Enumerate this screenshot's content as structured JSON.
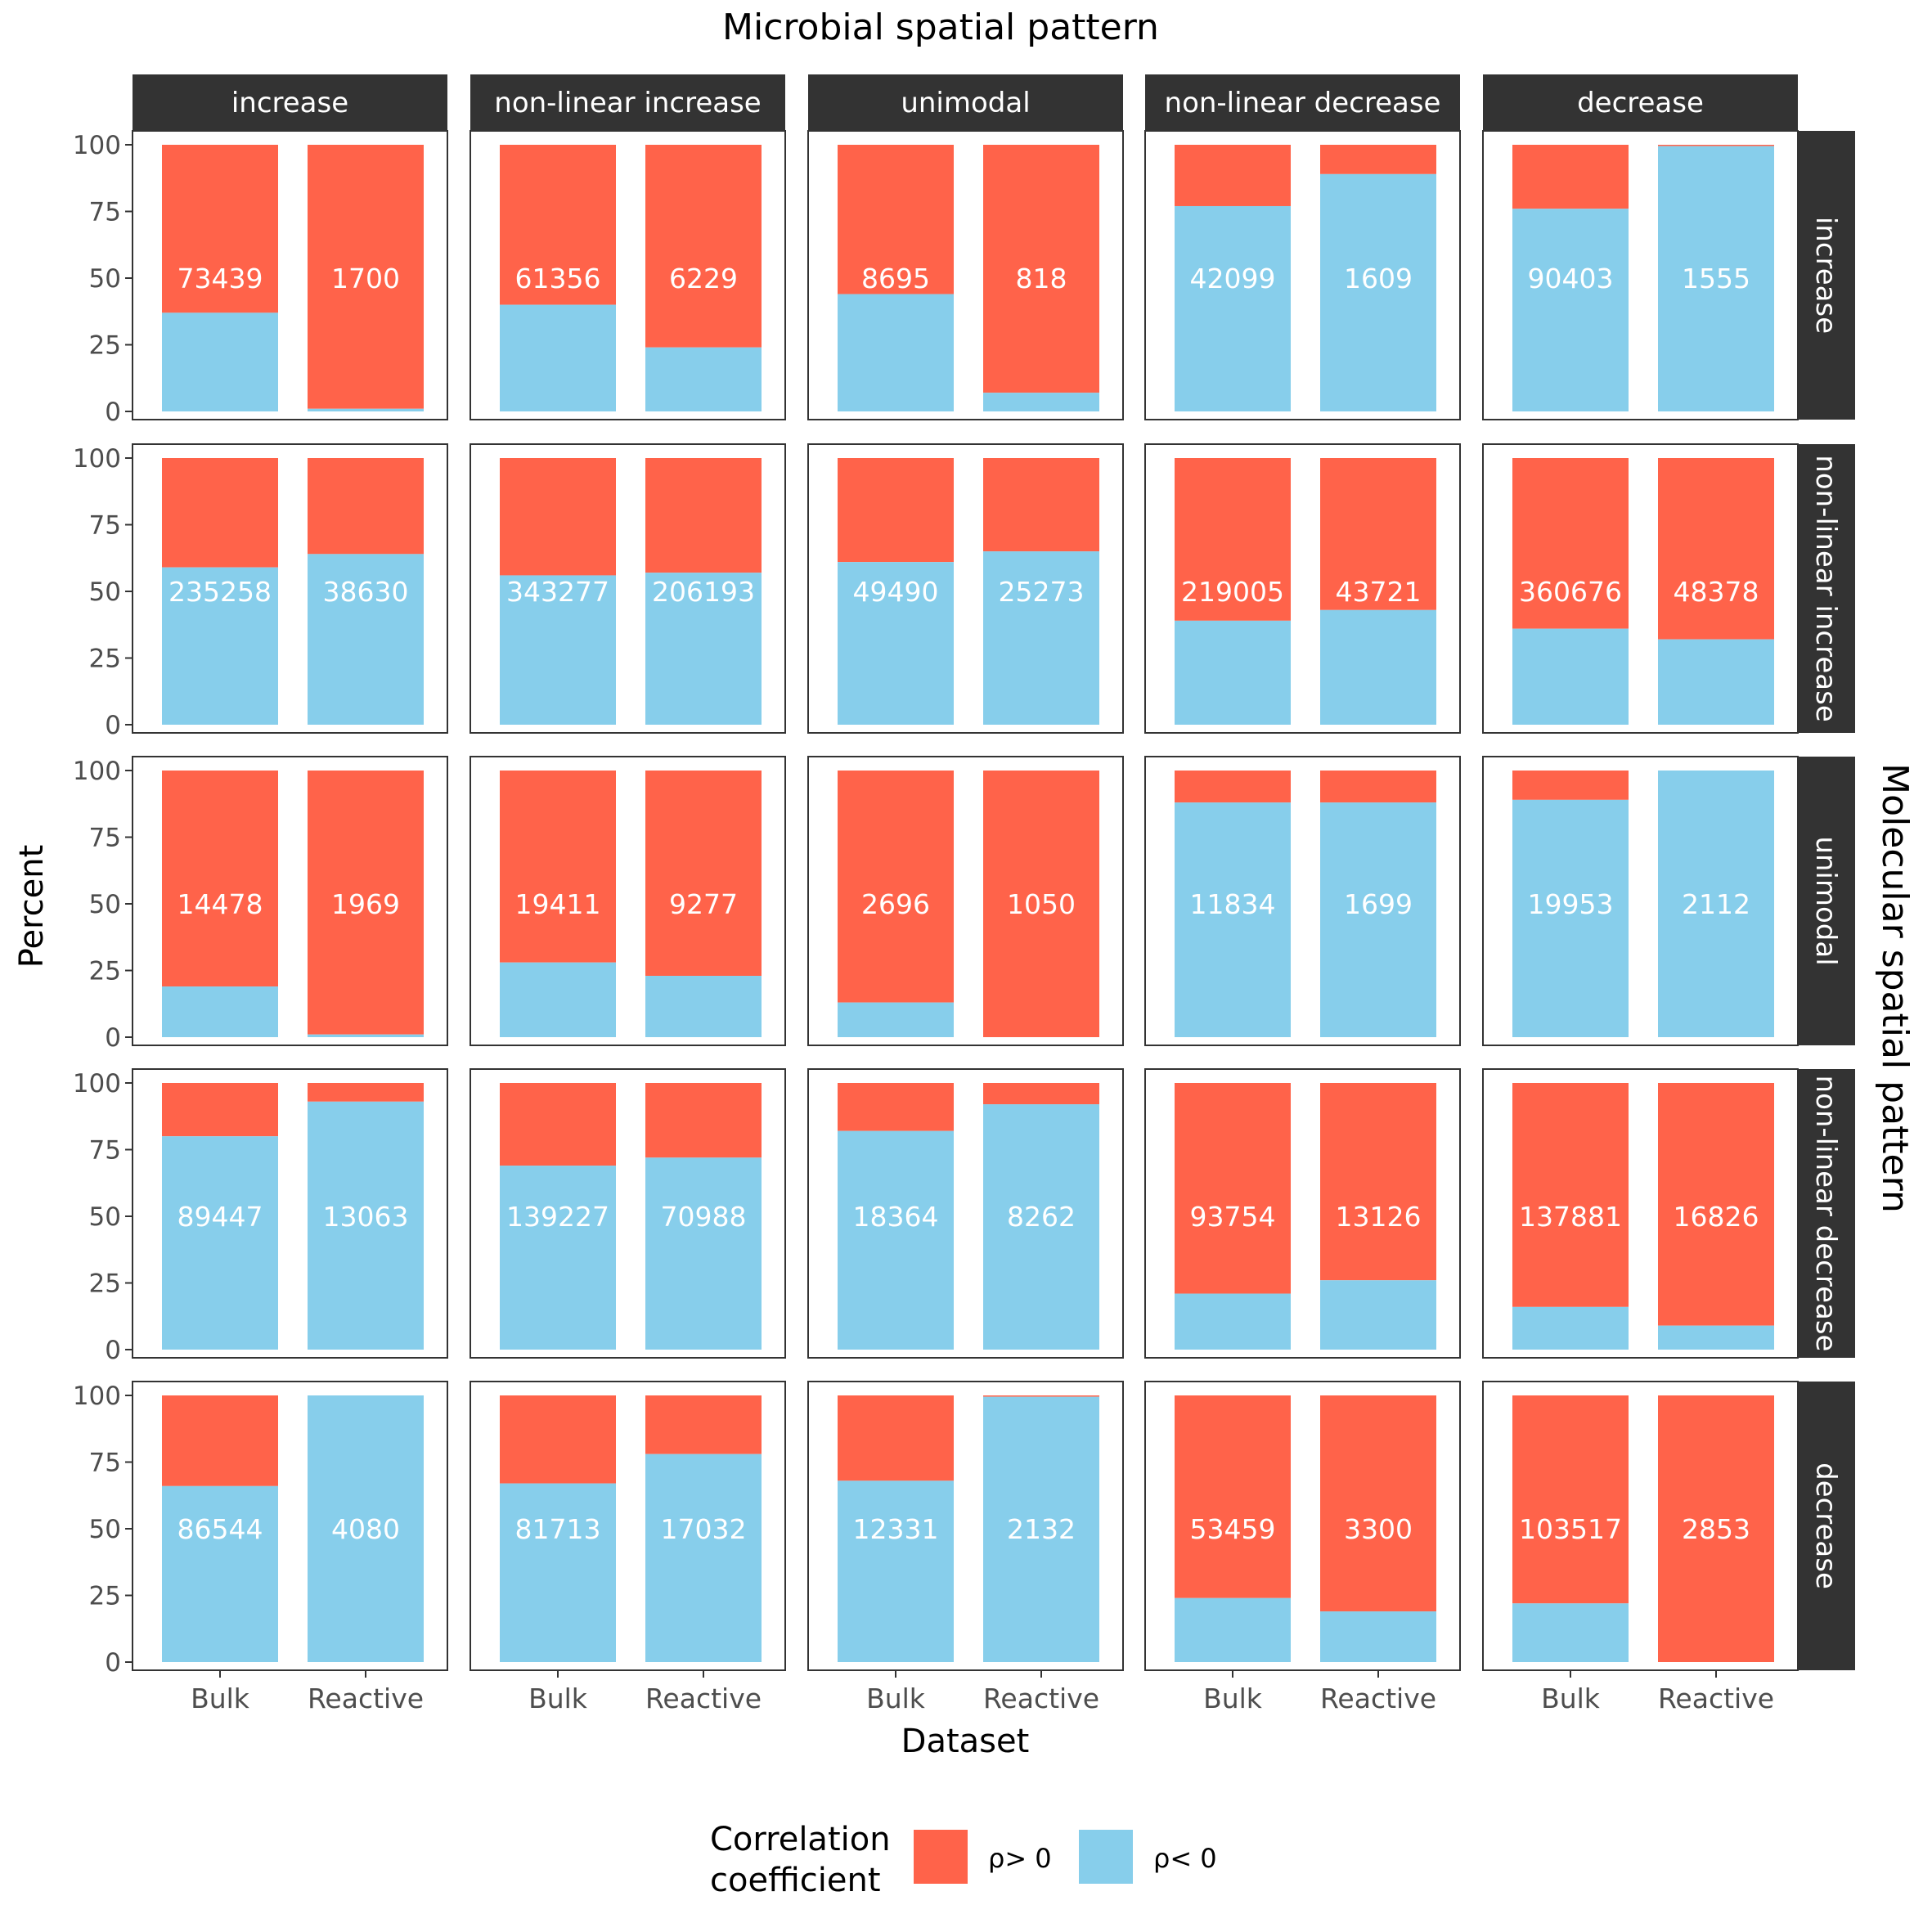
{
  "chart_data": {
    "type": "bar",
    "stacked": true,
    "title": "Microbial spatial pattern",
    "xlabel": "Dataset",
    "ylabel": "Percent",
    "row_strip_title": "Molecular spatial pattern",
    "column_facets": [
      "increase",
      "non-linear increase",
      "unimodal",
      "non-linear decrease",
      "decrease"
    ],
    "row_facets": [
      "increase",
      "non-linear increase",
      "unimodal",
      "non-linear decrease",
      "decrease"
    ],
    "categories": [
      "Bulk",
      "Reactive"
    ],
    "ylim": [
      0,
      100
    ],
    "y_ticks": [
      "0",
      "25",
      "50",
      "75",
      "100"
    ],
    "grid": false,
    "legend": {
      "title_line1": "Correlation",
      "title_line2": "coefficient",
      "position": "bottom",
      "entries": [
        {
          "label": "ρ> 0",
          "color": "#ff634a"
        },
        {
          "label": "ρ< 0",
          "color": "#87ceeb"
        }
      ]
    },
    "colors": {
      "positive": "#ff634a",
      "negative": "#87ceeb",
      "strip_bg": "#333333",
      "strip_text": "#ffffff"
    },
    "panels": [
      [
        {
          "bulk_negative_pct": 37,
          "reactive_negative_pct": 1,
          "bulk_count": "73439",
          "reactive_count": "1700"
        },
        {
          "bulk_negative_pct": 40,
          "reactive_negative_pct": 24,
          "bulk_count": "61356",
          "reactive_count": "6229"
        },
        {
          "bulk_negative_pct": 44,
          "reactive_negative_pct": 7,
          "bulk_count": "8695",
          "reactive_count": "818"
        },
        {
          "bulk_negative_pct": 77,
          "reactive_negative_pct": 89,
          "bulk_count": "42099",
          "reactive_count": "1609"
        },
        {
          "bulk_negative_pct": 76,
          "reactive_negative_pct": 99.5,
          "bulk_count": "90403",
          "reactive_count": "1555"
        }
      ],
      [
        {
          "bulk_negative_pct": 59,
          "reactive_negative_pct": 64,
          "bulk_count": "235258",
          "reactive_count": "38630"
        },
        {
          "bulk_negative_pct": 56,
          "reactive_negative_pct": 57,
          "bulk_count": "343277",
          "reactive_count": "206193"
        },
        {
          "bulk_negative_pct": 61,
          "reactive_negative_pct": 65,
          "bulk_count": "49490",
          "reactive_count": "25273"
        },
        {
          "bulk_negative_pct": 39,
          "reactive_negative_pct": 43,
          "bulk_count": "219005",
          "reactive_count": "43721"
        },
        {
          "bulk_negative_pct": 36,
          "reactive_negative_pct": 32,
          "bulk_count": "360676",
          "reactive_count": "48378"
        }
      ],
      [
        {
          "bulk_negative_pct": 19,
          "reactive_negative_pct": 1,
          "bulk_count": "14478",
          "reactive_count": "1969"
        },
        {
          "bulk_negative_pct": 28,
          "reactive_negative_pct": 23,
          "bulk_count": "19411",
          "reactive_count": "9277"
        },
        {
          "bulk_negative_pct": 13,
          "reactive_negative_pct": 0,
          "bulk_count": "2696",
          "reactive_count": "1050"
        },
        {
          "bulk_negative_pct": 88,
          "reactive_negative_pct": 88,
          "bulk_count": "11834",
          "reactive_count": "1699"
        },
        {
          "bulk_negative_pct": 89,
          "reactive_negative_pct": 100,
          "bulk_count": "19953",
          "reactive_count": "2112"
        }
      ],
      [
        {
          "bulk_negative_pct": 80,
          "reactive_negative_pct": 93,
          "bulk_count": "89447",
          "reactive_count": "13063"
        },
        {
          "bulk_negative_pct": 69,
          "reactive_negative_pct": 72,
          "bulk_count": "139227",
          "reactive_count": "70988"
        },
        {
          "bulk_negative_pct": 82,
          "reactive_negative_pct": 92,
          "bulk_count": "18364",
          "reactive_count": "8262"
        },
        {
          "bulk_negative_pct": 21,
          "reactive_negative_pct": 26,
          "bulk_count": "93754",
          "reactive_count": "13126"
        },
        {
          "bulk_negative_pct": 16,
          "reactive_negative_pct": 9,
          "bulk_count": "137881",
          "reactive_count": "16826"
        }
      ],
      [
        {
          "bulk_negative_pct": 66,
          "reactive_negative_pct": 100,
          "bulk_count": "86544",
          "reactive_count": "4080"
        },
        {
          "bulk_negative_pct": 67,
          "reactive_negative_pct": 78,
          "bulk_count": "81713",
          "reactive_count": "17032"
        },
        {
          "bulk_negative_pct": 68,
          "reactive_negative_pct": 99.5,
          "bulk_count": "12331",
          "reactive_count": "2132"
        },
        {
          "bulk_negative_pct": 24,
          "reactive_negative_pct": 19,
          "bulk_count": "53459",
          "reactive_count": "3300"
        },
        {
          "bulk_negative_pct": 22,
          "reactive_negative_pct": 0,
          "bulk_count": "103517",
          "reactive_count": "2853"
        }
      ]
    ]
  }
}
